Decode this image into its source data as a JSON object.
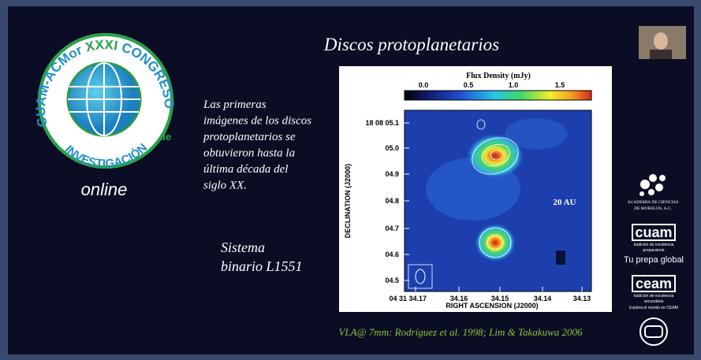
{
  "slide": {
    "title": "Discos protoplanetarios",
    "logo": {
      "top_left": "CUAM-ACMor",
      "numeral": "XXXI",
      "top_right": "CONGRESO",
      "side": "de",
      "bottom": "INVESTIGACIÓN",
      "tagline": "online"
    },
    "body_lines": [
      "Las primeras",
      "imágenes de los discos",
      "protoplanetarios se",
      "obtuvieron hasta la",
      "última década del",
      "siglo XX."
    ],
    "system_lines": [
      "Sistema",
      "binario L1551"
    ],
    "figure": {
      "colorbar_title": "Flux Density (mJy)",
      "colorbar_labels": [
        "0.0",
        "0.5",
        "1.0",
        "1.5"
      ],
      "y_axis_title": "DECLINATION (J2000)",
      "y_labels": [
        "18 08 05.1",
        "05.0",
        "04.9",
        "04.8",
        "04.7",
        "04.6",
        "04.5"
      ],
      "x_axis_title": "RIGHT ASCENSION (J2000)",
      "x_labels": [
        "04 31 34.17",
        "34.16",
        "34.15",
        "34.14",
        "34.13"
      ],
      "scale_label": "20 AU"
    },
    "caption": "VLA@ 7mm: Rodríguez et al. 1998; Lim & Takakuwa 2006",
    "sponsors": {
      "academia": [
        "ACADEMIA DE CIENCIAS",
        "DE MORELOS, A.C."
      ],
      "cuam": {
        "name": "cuam",
        "motto": "tradición de excelencia",
        "level": "preparatoria",
        "slogan": "Tu prepa global"
      },
      "ceam": {
        "name": "ceam",
        "motto": "tradición de excelencia",
        "level": "secundaria",
        "slogan": "Explora el mundo en CEAM"
      }
    }
  }
}
